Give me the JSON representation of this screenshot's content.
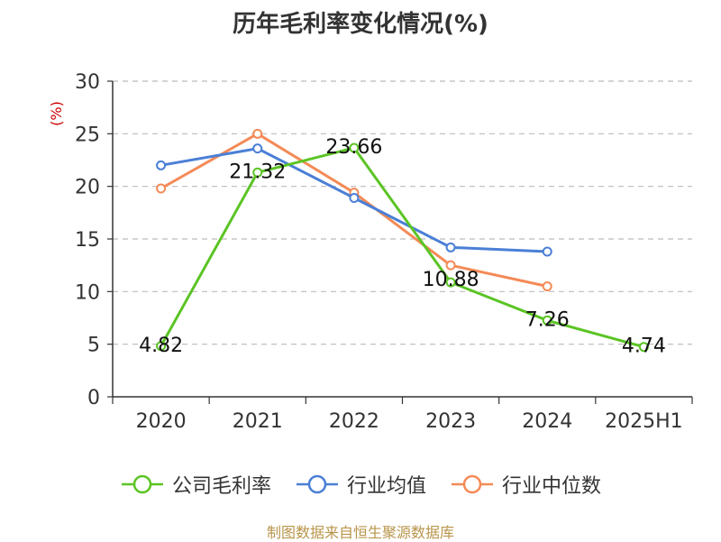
{
  "title": "历年毛利率变化情况(%)",
  "source_note": "制图数据来自恒生聚源数据库",
  "colors": {
    "axis": "#333333",
    "grid": "#bbbbbb",
    "ylabel": "#cc0000",
    "text": "#111111"
  },
  "chart_data": {
    "type": "line",
    "title": "历年毛利率变化情况(%)",
    "xlabel": "",
    "ylabel": "(%)",
    "categories": [
      "2020",
      "2021",
      "2022",
      "2023",
      "2024",
      "2025H1"
    ],
    "ylim": [
      0,
      30
    ],
    "yticks": [
      0,
      5,
      10,
      15,
      20,
      25,
      30
    ],
    "grid": true,
    "legend_position": "bottom",
    "series": [
      {
        "name": "公司毛利率",
        "color": "#5bc424",
        "values": [
          4.82,
          21.32,
          23.66,
          10.88,
          7.26,
          4.74
        ],
        "data_labels": [
          "4.82",
          "21.32",
          "23.66",
          "10.88",
          "7.26",
          "4.74"
        ]
      },
      {
        "name": "行业均值",
        "color": "#4a7fd6",
        "values": [
          22.0,
          23.6,
          18.9,
          14.2,
          13.8,
          null
        ]
      },
      {
        "name": "行业中位数",
        "color": "#f48a56",
        "values": [
          19.8,
          25.0,
          19.4,
          12.5,
          10.5,
          null
        ]
      }
    ]
  }
}
